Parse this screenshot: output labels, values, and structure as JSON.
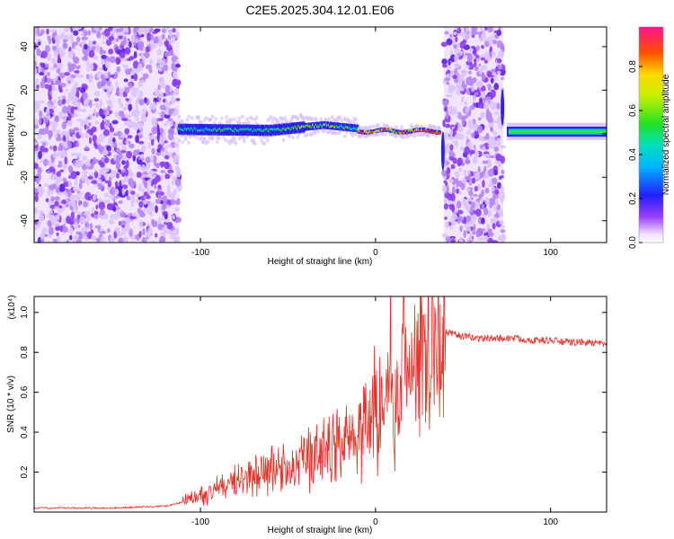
{
  "title": "C2E5.2025.304.12.01.E06",
  "colors": {
    "snr_line": "#e8312a",
    "spectro_bg": "#ffffff",
    "axes": "#000000"
  },
  "chart_data": [
    {
      "type": "heatmap",
      "name": "spectrogram",
      "xlabel": "Height of straight line (km)",
      "ylabel": "Frequency (Hz)",
      "xlim": [
        -195,
        132
      ],
      "ylim": [
        -50,
        49
      ],
      "xticks": [
        -100,
        0,
        100
      ],
      "yticks": [
        -40,
        -20,
        0,
        20,
        40
      ],
      "colorbar": {
        "label": "Normalized spectral amplitude",
        "range": [
          0,
          0.98
        ],
        "ticks": [
          0.0,
          0.2,
          0.4,
          0.6,
          0.8
        ]
      },
      "regions": [
        {
          "label": "noise",
          "x": [
            -195,
            -112
          ],
          "f": [
            -50,
            49
          ]
        },
        {
          "label": "signal",
          "x": [
            -112,
            38
          ],
          "f_center": [
            2,
            2,
            1,
            3,
            4,
            2,
            1,
            1,
            0
          ]
        },
        {
          "label": "noise",
          "x": [
            39,
            73
          ],
          "f": [
            -50,
            49
          ]
        },
        {
          "label": "signal",
          "x": [
            75,
            132
          ],
          "f_center": [
            1,
            1
          ]
        }
      ]
    },
    {
      "type": "line",
      "name": "snr",
      "xlabel": "Height of straight line (km)",
      "ylabel": "SNR (10 * v/v)",
      "y_multiplier": "(x10⁴)",
      "xlim": [
        -195,
        132
      ],
      "ylim": [
        0,
        1.08
      ],
      "xticks": [
        -100,
        0,
        100
      ],
      "yticks": [
        0.2,
        0.4,
        0.6,
        0.8,
        1.0
      ],
      "x": [
        -195,
        -150,
        -120,
        -110,
        -100,
        -90,
        -80,
        -70,
        -60,
        -50,
        -40,
        -30,
        -20,
        -10,
        0,
        5,
        8,
        10,
        15,
        20,
        25,
        30,
        35,
        40,
        50,
        60,
        70,
        80,
        90,
        100,
        110,
        120,
        132
      ],
      "y": [
        0.02,
        0.02,
        0.03,
        0.05,
        0.08,
        0.12,
        0.15,
        0.18,
        0.2,
        0.22,
        0.26,
        0.3,
        0.36,
        0.42,
        0.52,
        0.6,
        0.95,
        0.45,
        0.7,
        0.75,
        0.8,
        0.86,
        0.89,
        0.9,
        0.88,
        0.87,
        0.87,
        0.87,
        0.86,
        0.86,
        0.85,
        0.85,
        0.84
      ]
    }
  ]
}
